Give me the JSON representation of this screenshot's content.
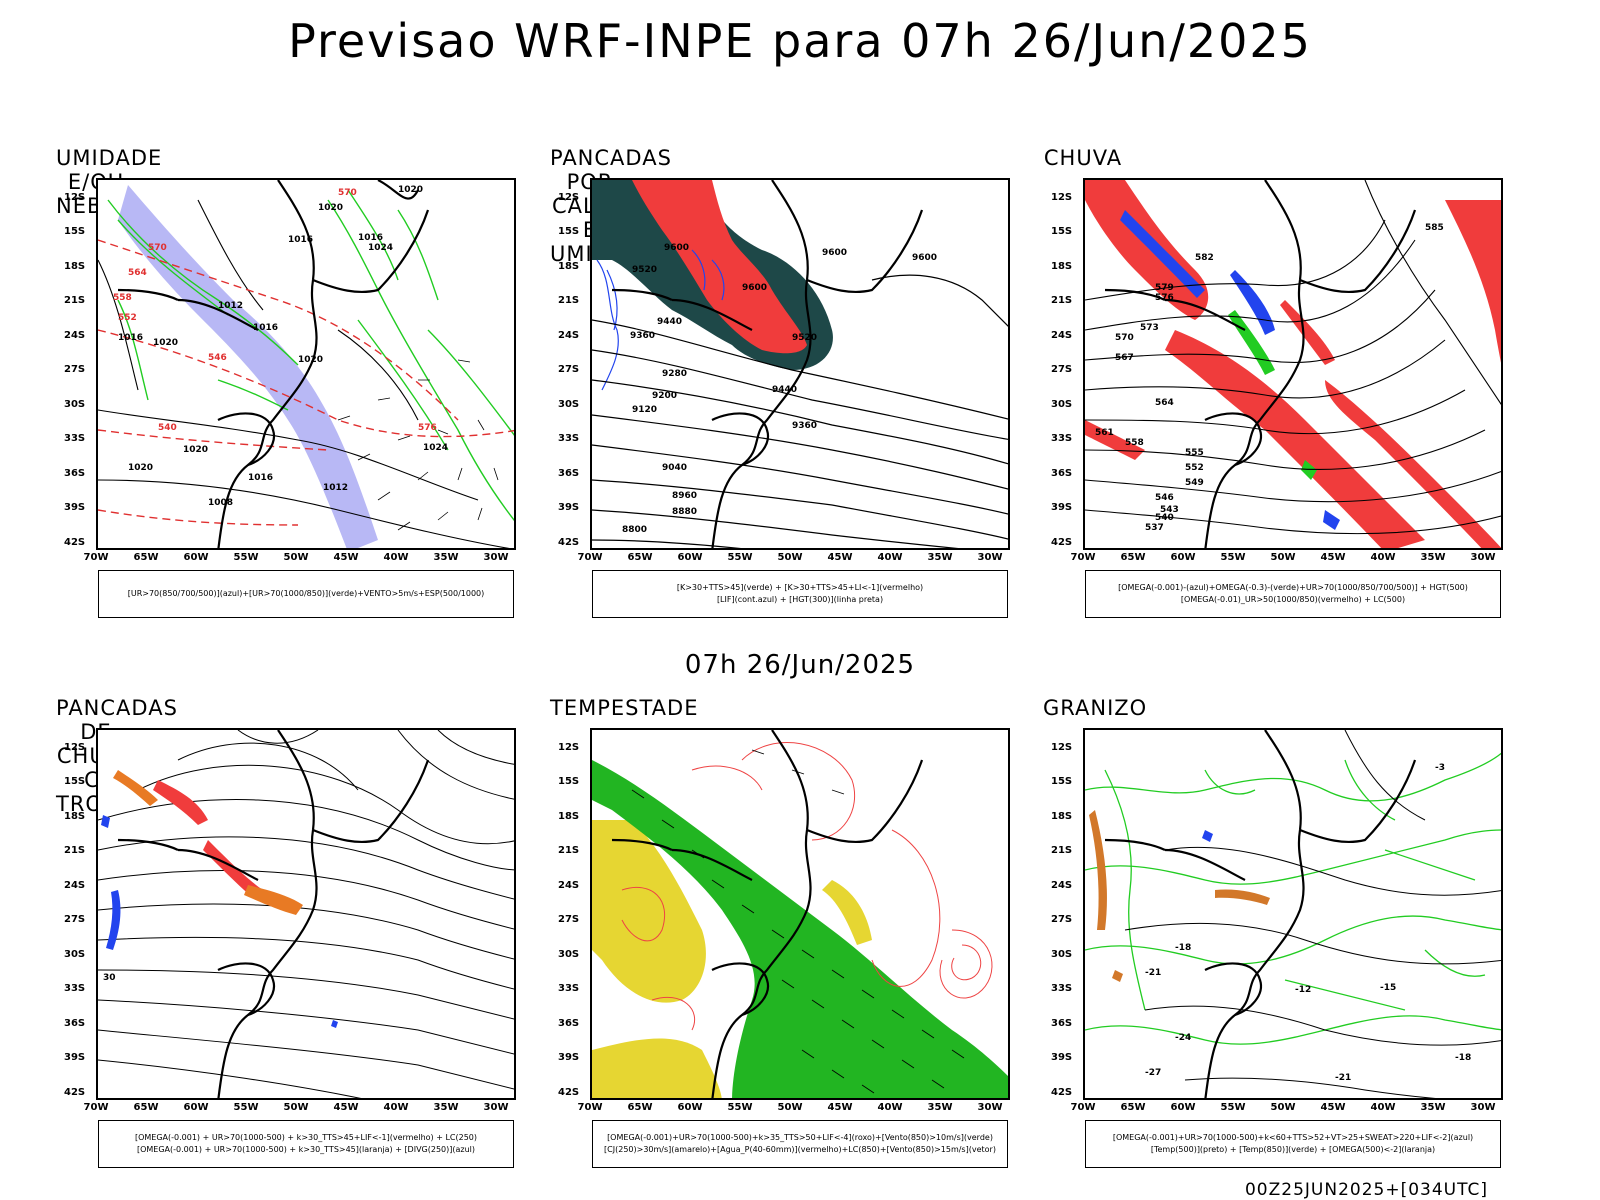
{
  "header": {
    "title": "Previsao WRF-INPE  para 07h 26/Jun/2025"
  },
  "mid_title": "07h 26/Jun/2025",
  "footer": "00Z25JUN2025+[034UTC]",
  "axes": {
    "lat_labels": [
      "12S",
      "15S",
      "18S",
      "21S",
      "24S",
      "27S",
      "30S",
      "33S",
      "36S",
      "39S",
      "42S"
    ],
    "lon_labels": [
      "70W",
      "65W",
      "60W",
      "55W",
      "50W",
      "45W",
      "40W",
      "35W",
      "30W"
    ]
  },
  "panels": [
    {
      "title": "UMIDADE E/OU NEBULOSIDADE",
      "legend": [
        "[UR>70(850/700/500)](azul)+[UR>70(1000/850)](verde)+VENTO>5m/s+ESP(500/1000)"
      ],
      "labels": [
        "1020",
        "1016",
        "1016",
        "1020",
        "1024",
        "1012",
        "1016",
        "1020",
        "1020",
        "1024",
        "1016",
        "1020",
        "1020",
        "1016",
        "1012",
        "1008",
        "570",
        "564",
        "558",
        "552",
        "546",
        "540",
        "576",
        "570"
      ]
    },
    {
      "title": "PANCADAS POR CALOR E UMIDADE",
      "legend": [
        "[K>30+TTS>45](verde) + [K>30+TTS>45+LI<-1](vermelho)",
        "[LIF](cont.azul) + [HGT(300)](linha preta)"
      ],
      "labels": [
        "9600",
        "9600",
        "9520",
        "9600",
        "9440",
        "9520",
        "9360",
        "9280",
        "9200",
        "9120",
        "9440",
        "9360",
        "9040",
        "8960",
        "8880",
        "8800",
        "9600"
      ]
    },
    {
      "title": "CHUVA",
      "legend": [
        "[OMEGA(-0.001)-(azul)+OMEGA(-0.3)-(verde)+UR>70(1000/850/700/500)] + HGT(500)",
        "[OMEGA(-0.01)_UR>50(1000/850)(vermelho) + LC(500)"
      ],
      "labels": [
        "585",
        "582",
        "579",
        "576",
        "573",
        "570",
        "567",
        "564",
        "561",
        "558",
        "555",
        "552",
        "549",
        "546",
        "543",
        "540",
        "537"
      ]
    },
    {
      "title": "PANCADAS DE CHUVA C/ TROVOADAS",
      "legend": [
        "[OMEGA(-0.001) + UR>70(1000-500) + k>30_TTS>45+LIF<-1](vermelho) + LC(250)",
        "[OMEGA(-0.001) + UR>70(1000-500) + k>30_TTS>45](laranja) + [DIVG(250)](azul)"
      ],
      "labels": [
        "30"
      ]
    },
    {
      "title": "TEMPESTADE",
      "legend": [
        "[OMEGA(-0.001)+UR>70(1000-500)+k>35_TTS>50+LIF<-4](roxo)+[Vento(850)>10m/s](verde)",
        "[CJ(250)>30m/s](amarelo)+[Agua_P(40-60mm)](vermelho)+LC(850)+[Vento(850)>15m/s](vetor)"
      ],
      "labels": []
    },
    {
      "title": "GRANIZO",
      "legend": [
        "[OMEGA(-0.001)+UR>70(1000-500)+k<60+TTS>52+VT>25+SWEAT>220+LIF<-2](azul)",
        "[Temp(500)](preto) + [Temp(850)](verde) + [OMEGA(500)<-2](laranja)"
      ],
      "labels": [
        "-3",
        "-18",
        "-21",
        "-12",
        "-15",
        "-18",
        "-21",
        "-24",
        "-27"
      ]
    }
  ]
}
